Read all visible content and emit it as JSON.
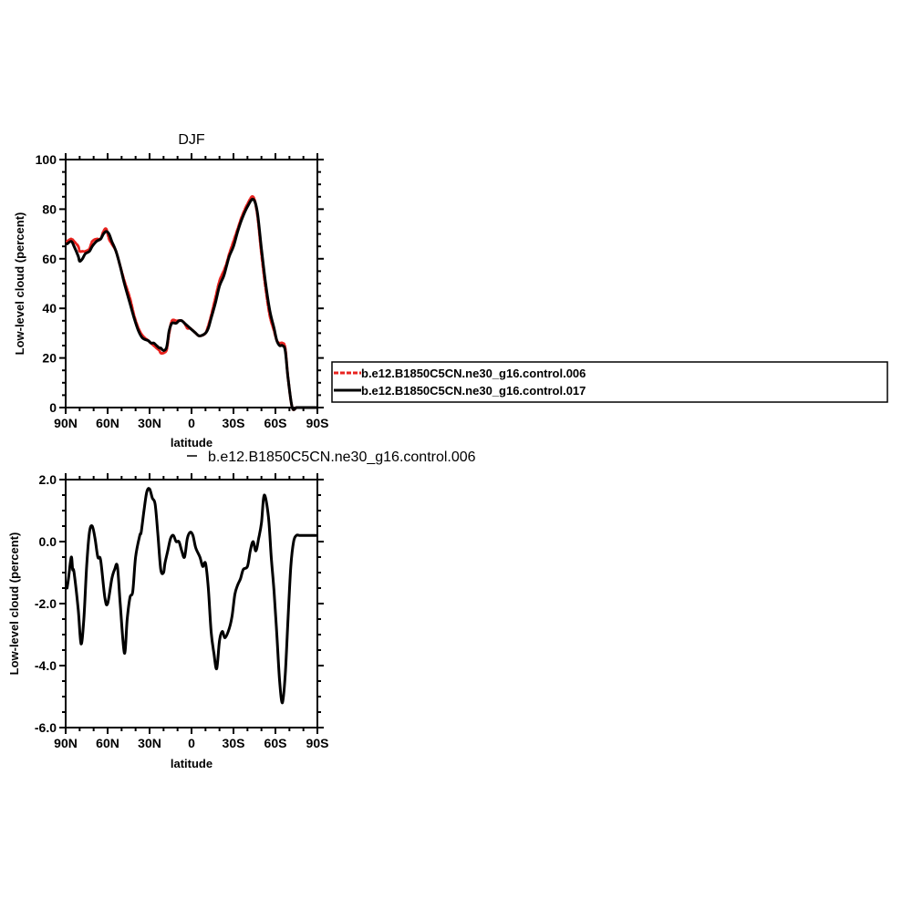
{
  "chart_data": [
    {
      "type": "line",
      "title": "DJF",
      "xlabel": "latitude",
      "ylabel": "Low-level cloud (percent)",
      "xlim": [
        90,
        -90
      ],
      "ylim": [
        0,
        100
      ],
      "x_ticks": [
        90,
        60,
        30,
        0,
        -30,
        -60,
        -90
      ],
      "x_tick_labels": [
        "90N",
        "60N",
        "30N",
        "0",
        "30S",
        "60S",
        "90S"
      ],
      "y_ticks": [
        0,
        20,
        40,
        60,
        80,
        100
      ],
      "y_tick_labels": [
        "0",
        "20",
        "40",
        "60",
        "80",
        "100"
      ],
      "legend": {
        "position": "right",
        "entries": [
          "b.e12.B1850C5CN.ne30_g16.control.006",
          "b.e12.B1850C5CN.ne30_g16.control.017"
        ]
      },
      "series": [
        {
          "name": "b.e12.B1850C5CN.ne30_g16.control.006",
          "color": "#e8231f",
          "dash": true,
          "x": [
            89,
            86,
            84,
            81,
            80,
            78,
            76,
            73,
            71,
            68,
            65,
            63,
            61,
            59,
            57,
            54,
            51,
            48,
            44,
            41,
            38,
            35,
            31,
            29,
            27,
            25,
            23,
            22,
            20,
            18,
            17,
            16,
            14,
            11,
            9,
            7,
            5,
            3,
            1,
            -1,
            -3,
            -5,
            -7,
            -10,
            -12,
            -14,
            -17,
            -20,
            -23,
            -25,
            -27,
            -30,
            -33,
            -36,
            -40,
            -44,
            -47,
            -50,
            -53,
            -56,
            -59,
            -61,
            -63,
            -65,
            -67,
            -69,
            -72,
            -75,
            -77,
            -79,
            -80,
            -82,
            -84,
            -86,
            -88,
            -89
          ],
          "values": [
            67,
            68,
            67,
            65,
            63,
            63,
            63,
            64,
            67,
            68,
            68,
            71,
            72,
            68,
            66,
            63,
            57,
            51,
            44,
            37,
            32,
            29,
            27,
            26,
            25,
            24,
            23,
            22,
            22,
            23,
            26,
            30,
            35,
            35,
            35,
            35,
            34,
            32,
            32,
            31,
            30,
            29,
            29,
            30,
            33,
            37,
            44,
            51,
            55,
            58,
            62,
            67,
            72,
            77,
            82,
            85,
            78,
            62,
            48,
            37,
            31,
            27,
            26,
            26,
            24,
            12,
            0,
            0,
            0,
            0,
            0,
            0,
            0,
            0,
            0,
            0
          ],
          "note_partial": false
        },
        {
          "name": "b.e12.B1850C5CN.ne30_g16.control.017",
          "color": "#000000",
          "dash": false,
          "x": [
            89,
            86,
            84,
            81,
            80,
            78,
            76,
            73,
            71,
            68,
            65,
            63,
            61,
            59,
            57,
            54,
            51,
            48,
            44,
            41,
            38,
            35,
            31,
            29,
            27,
            25,
            23,
            22,
            20,
            18,
            17,
            16,
            14,
            11,
            9,
            7,
            5,
            3,
            1,
            -1,
            -3,
            -5,
            -7,
            -10,
            -12,
            -14,
            -17,
            -20,
            -23,
            -25,
            -27,
            -30,
            -33,
            -36,
            -40,
            -44,
            -47,
            -50,
            -53,
            -56,
            -59,
            -61,
            -63,
            -65,
            -67,
            -69,
            -72,
            -75,
            -77,
            -79,
            -80,
            -82,
            -84,
            -86,
            -88,
            -89
          ],
          "values": [
            66,
            67,
            65,
            61,
            59,
            60,
            62,
            63,
            65,
            67,
            68,
            70,
            71,
            70,
            67,
            63,
            57,
            50,
            42,
            36,
            31,
            28,
            27,
            26,
            26,
            25,
            24,
            24,
            23,
            24,
            27,
            31,
            34,
            34,
            35,
            35,
            34,
            33,
            32,
            31,
            30,
            29,
            29,
            30,
            32,
            36,
            42,
            49,
            53,
            57,
            61,
            65,
            71,
            76,
            81,
            84,
            79,
            64,
            50,
            39,
            32,
            27,
            25,
            25,
            23,
            12,
            0,
            0,
            0,
            0,
            0,
            0,
            0,
            0,
            0,
            0
          ]
        }
      ]
    },
    {
      "type": "line",
      "title": "b.e12.B1850C5CN.ne30_g16.control.006",
      "xlabel": "latitude",
      "ylabel": "Low-level cloud (percent)",
      "xlim": [
        90,
        -90
      ],
      "ylim": [
        -6.0,
        2.0
      ],
      "x_ticks": [
        90,
        60,
        30,
        0,
        -30,
        -60,
        -90
      ],
      "x_tick_labels": [
        "90N",
        "60N",
        "30N",
        "0",
        "30S",
        "60S",
        "90S"
      ],
      "y_ticks": [
        -6.0,
        -4.0,
        -2.0,
        0.0,
        2.0
      ],
      "y_tick_labels": [
        "-6.0",
        "-4.0",
        "-2.0",
        "0.0",
        "2.0"
      ],
      "series": [
        {
          "color": "#000000",
          "x": [
            89,
            88,
            86,
            85,
            84,
            81,
            79,
            77,
            75,
            73,
            71,
            69,
            67,
            65,
            62,
            60,
            57,
            55,
            53,
            51,
            48,
            46,
            44,
            42,
            40,
            37,
            36,
            34,
            32,
            30,
            28,
            26,
            24,
            22,
            20,
            19,
            17,
            15,
            13,
            11,
            9,
            7,
            5,
            3,
            1,
            -1,
            -3,
            -6,
            -8,
            -10,
            -12,
            -14,
            -16,
            -18,
            -20,
            -22,
            -24,
            -27,
            -29,
            -31,
            -33,
            -35,
            -37,
            -40,
            -42,
            -44,
            -46,
            -48,
            -50,
            -52,
            -55,
            -57,
            -59,
            -61,
            -63,
            -65,
            -67,
            -69,
            -71,
            -73,
            -75,
            -77,
            -79,
            -81,
            -83,
            -85,
            -87,
            -88,
            -89
          ],
          "values": [
            -1.5,
            -1.2,
            -0.5,
            -0.9,
            -1.0,
            -2.2,
            -3.3,
            -2.5,
            -0.8,
            0.3,
            0.5,
            0.1,
            -0.5,
            -0.6,
            -1.8,
            -2.0,
            -1.2,
            -0.9,
            -0.8,
            -2.0,
            -3.6,
            -2.5,
            -1.8,
            -1.6,
            -0.5,
            0.2,
            0.3,
            1.0,
            1.6,
            1.7,
            1.4,
            1.2,
            0.2,
            -0.9,
            -1.0,
            -0.7,
            -0.3,
            0.1,
            0.2,
            0.0,
            0.0,
            -0.3,
            -0.5,
            0.1,
            0.3,
            0.2,
            -0.2,
            -0.5,
            -0.8,
            -0.7,
            -1.5,
            -2.9,
            -3.6,
            -4.1,
            -3.2,
            -2.9,
            -3.1,
            -2.8,
            -2.4,
            -1.7,
            -1.4,
            -1.2,
            -0.9,
            -0.8,
            -0.3,
            0.0,
            -0.3,
            0.1,
            0.6,
            1.5,
            0.8,
            -0.5,
            -1.6,
            -3.0,
            -4.5,
            -5.2,
            -4.3,
            -2.5,
            -0.8,
            0.0,
            0.2,
            0.2,
            0.2,
            0.2,
            0.2,
            0.2,
            0.2,
            0.2,
            0.2
          ]
        }
      ]
    }
  ]
}
